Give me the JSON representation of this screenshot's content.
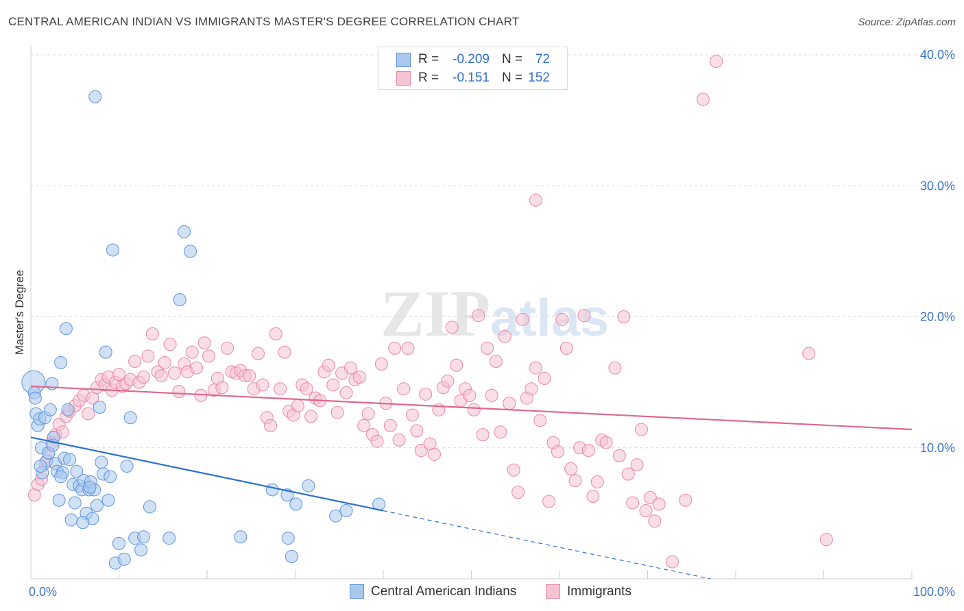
{
  "title": "CENTRAL AMERICAN INDIAN VS IMMIGRANTS MASTER'S DEGREE CORRELATION CHART",
  "source": "Source: ZipAtlas.com",
  "watermark": {
    "zip": "ZIP",
    "atlas": "atlas"
  },
  "colors": {
    "blue": "#5b93dd",
    "blue_fill": "#aac8ee",
    "blue_line": "#2a6fd0",
    "pink": "#e986a6",
    "pink_fill": "#f6c3d3",
    "pink_line": "#e0668f",
    "grid": "#d9d9d9",
    "tick_text": "#3a73c8"
  },
  "legend": {
    "rows": [
      {
        "r_label": "R =",
        "r_value": "-0.209",
        "n_label": "N =",
        "n_value": "72"
      },
      {
        "r_label": "R =",
        "r_value": "-0.151",
        "n_label": "N =",
        "n_value": "152"
      }
    ],
    "bottom": [
      "Central American Indians",
      "Immigrants"
    ]
  },
  "chart_data": {
    "type": "scatter",
    "title": "CENTRAL AMERICAN INDIAN VS IMMIGRANTS MASTER'S DEGREE CORRELATION CHART",
    "xlabel": "",
    "ylabel": "Master's Degree",
    "xlim": [
      0,
      100
    ],
    "ylim": [
      0,
      40
    ],
    "x_tick_labels": [
      "0.0%",
      "100.0%"
    ],
    "y_ticks": [
      10,
      20,
      30,
      40
    ],
    "y_tick_labels": [
      "10.0%",
      "20.0%",
      "30.0%",
      "40.0%"
    ],
    "series": [
      {
        "name": "Central American Indians",
        "r": -0.209,
        "n": 72,
        "trend": {
          "x0": 0,
          "y0": 10.8,
          "x1": 40,
          "y1": 5.2,
          "dash_to_x": 100
        },
        "points": [
          [
            0.3,
            15.0
          ],
          [
            0.4,
            14.2
          ],
          [
            0.5,
            13.8
          ],
          [
            0.6,
            12.6
          ],
          [
            0.8,
            11.7
          ],
          [
            1.0,
            12.2
          ],
          [
            1.2,
            10.0
          ],
          [
            1.3,
            8.1
          ],
          [
            1.6,
            12.3
          ],
          [
            1.8,
            9.0
          ],
          [
            2.0,
            9.6
          ],
          [
            2.2,
            12.9
          ],
          [
            2.4,
            14.9
          ],
          [
            2.6,
            10.8
          ],
          [
            2.8,
            8.8
          ],
          [
            3.0,
            8.2
          ],
          [
            3.2,
            6.0
          ],
          [
            3.4,
            16.5
          ],
          [
            3.6,
            8.1
          ],
          [
            3.8,
            9.2
          ],
          [
            4.0,
            19.1
          ],
          [
            4.2,
            12.9
          ],
          [
            4.4,
            9.1
          ],
          [
            4.6,
            4.5
          ],
          [
            4.8,
            7.2
          ],
          [
            5.0,
            5.8
          ],
          [
            5.2,
            8.2
          ],
          [
            5.5,
            7.1
          ],
          [
            5.8,
            6.8
          ],
          [
            6.0,
            7.5
          ],
          [
            6.3,
            5.0
          ],
          [
            6.6,
            6.8
          ],
          [
            6.8,
            7.4
          ],
          [
            7.0,
            4.6
          ],
          [
            7.2,
            6.8
          ],
          [
            7.5,
            5.6
          ],
          [
            7.8,
            13.1
          ],
          [
            8.0,
            8.9
          ],
          [
            8.2,
            8.0
          ],
          [
            8.5,
            17.3
          ],
          [
            8.8,
            6.0
          ],
          [
            9.0,
            7.8
          ],
          [
            9.3,
            25.1
          ],
          [
            9.6,
            1.2
          ],
          [
            10.0,
            2.7
          ],
          [
            10.6,
            1.5
          ],
          [
            10.9,
            8.6
          ],
          [
            11.3,
            12.3
          ],
          [
            11.8,
            3.1
          ],
          [
            12.5,
            2.2
          ],
          [
            12.8,
            3.2
          ],
          [
            13.5,
            5.5
          ],
          [
            15.7,
            3.1
          ],
          [
            17.4,
            26.5
          ],
          [
            18.1,
            25.0
          ],
          [
            16.9,
            21.3
          ],
          [
            7.3,
            36.8
          ],
          [
            23.8,
            3.2
          ],
          [
            27.4,
            6.8
          ],
          [
            29.1,
            6.4
          ],
          [
            29.2,
            3.1
          ],
          [
            29.6,
            1.7
          ],
          [
            30.1,
            5.7
          ],
          [
            31.5,
            7.1
          ],
          [
            34.6,
            4.8
          ],
          [
            35.8,
            5.2
          ],
          [
            39.5,
            5.7
          ],
          [
            1.1,
            8.6
          ],
          [
            2.5,
            10.2
          ],
          [
            3.4,
            7.8
          ],
          [
            5.9,
            4.3
          ],
          [
            6.7,
            7.0
          ]
        ]
      },
      {
        "name": "Immigrants",
        "r": -0.151,
        "n": 152,
        "trend": {
          "x0": 0,
          "y0": 14.7,
          "x1": 100,
          "y1": 11.4
        },
        "points": [
          [
            0.4,
            6.4
          ],
          [
            0.8,
            7.2
          ],
          [
            1.2,
            7.6
          ],
          [
            1.6,
            8.8
          ],
          [
            2.0,
            9.6
          ],
          [
            2.4,
            10.4
          ],
          [
            2.8,
            11.0
          ],
          [
            3.2,
            11.8
          ],
          [
            3.6,
            11.2
          ],
          [
            4.0,
            12.4
          ],
          [
            4.4,
            12.8
          ],
          [
            5.0,
            13.2
          ],
          [
            5.5,
            13.6
          ],
          [
            6.0,
            14.0
          ],
          [
            6.5,
            12.6
          ],
          [
            7.0,
            13.8
          ],
          [
            7.5,
            14.6
          ],
          [
            8.0,
            15.2
          ],
          [
            8.4,
            14.8
          ],
          [
            8.8,
            15.4
          ],
          [
            9.2,
            14.4
          ],
          [
            9.6,
            15.0
          ],
          [
            10.0,
            15.6
          ],
          [
            10.4,
            14.7
          ],
          [
            10.8,
            14.9
          ],
          [
            11.3,
            15.2
          ],
          [
            11.8,
            16.6
          ],
          [
            12.3,
            15.0
          ],
          [
            12.8,
            15.4
          ],
          [
            13.3,
            17.0
          ],
          [
            13.8,
            18.7
          ],
          [
            14.4,
            15.8
          ],
          [
            14.8,
            15.5
          ],
          [
            15.2,
            16.5
          ],
          [
            15.8,
            17.9
          ],
          [
            16.3,
            15.7
          ],
          [
            16.8,
            14.3
          ],
          [
            17.4,
            16.4
          ],
          [
            17.8,
            15.8
          ],
          [
            18.3,
            17.3
          ],
          [
            18.8,
            16.1
          ],
          [
            19.3,
            14.0
          ],
          [
            19.7,
            18.0
          ],
          [
            20.2,
            17.0
          ],
          [
            20.8,
            14.4
          ],
          [
            21.2,
            15.3
          ],
          [
            21.7,
            14.6
          ],
          [
            22.3,
            17.6
          ],
          [
            22.8,
            15.8
          ],
          [
            23.3,
            15.7
          ],
          [
            23.8,
            15.9
          ],
          [
            24.3,
            15.5
          ],
          [
            24.8,
            15.5
          ],
          [
            25.3,
            14.5
          ],
          [
            25.8,
            17.2
          ],
          [
            26.3,
            14.8
          ],
          [
            26.8,
            12.3
          ],
          [
            27.2,
            11.7
          ],
          [
            27.8,
            18.7
          ],
          [
            28.3,
            14.5
          ],
          [
            28.8,
            17.3
          ],
          [
            29.3,
            12.8
          ],
          [
            29.8,
            12.5
          ],
          [
            30.3,
            13.2
          ],
          [
            30.8,
            14.8
          ],
          [
            31.3,
            14.5
          ],
          [
            31.8,
            12.4
          ],
          [
            32.3,
            13.8
          ],
          [
            32.8,
            13.6
          ],
          [
            33.3,
            15.8
          ],
          [
            33.8,
            16.3
          ],
          [
            34.3,
            14.8
          ],
          [
            34.8,
            12.7
          ],
          [
            35.3,
            15.7
          ],
          [
            35.8,
            14.2
          ],
          [
            36.3,
            16.1
          ],
          [
            36.8,
            15.2
          ],
          [
            37.3,
            15.4
          ],
          [
            37.8,
            11.7
          ],
          [
            38.3,
            12.6
          ],
          [
            38.8,
            11.0
          ],
          [
            39.3,
            10.5
          ],
          [
            39.8,
            16.4
          ],
          [
            40.3,
            13.4
          ],
          [
            40.8,
            11.7
          ],
          [
            41.3,
            17.6
          ],
          [
            41.8,
            10.6
          ],
          [
            42.3,
            14.5
          ],
          [
            42.8,
            17.6
          ],
          [
            43.3,
            12.5
          ],
          [
            43.8,
            11.3
          ],
          [
            44.3,
            9.8
          ],
          [
            44.8,
            14.1
          ],
          [
            45.3,
            10.3
          ],
          [
            45.8,
            9.5
          ],
          [
            46.3,
            12.9
          ],
          [
            46.8,
            14.6
          ],
          [
            47.3,
            15.1
          ],
          [
            47.8,
            19.2
          ],
          [
            48.3,
            16.3
          ],
          [
            48.8,
            13.6
          ],
          [
            49.3,
            14.5
          ],
          [
            49.8,
            14.0
          ],
          [
            50.3,
            12.9
          ],
          [
            50.8,
            20.1
          ],
          [
            51.3,
            11.0
          ],
          [
            51.8,
            17.6
          ],
          [
            52.3,
            14.0
          ],
          [
            52.8,
            16.6
          ],
          [
            53.3,
            11.2
          ],
          [
            53.8,
            18.5
          ],
          [
            54.3,
            13.4
          ],
          [
            54.8,
            8.3
          ],
          [
            55.3,
            6.6
          ],
          [
            55.8,
            19.8
          ],
          [
            56.3,
            13.8
          ],
          [
            56.8,
            14.5
          ],
          [
            57.3,
            16.1
          ],
          [
            57.8,
            12.1
          ],
          [
            58.3,
            15.3
          ],
          [
            58.8,
            5.9
          ],
          [
            59.3,
            10.4
          ],
          [
            59.8,
            9.7
          ],
          [
            60.3,
            19.8
          ],
          [
            60.8,
            17.6
          ],
          [
            61.3,
            8.4
          ],
          [
            61.8,
            7.5
          ],
          [
            62.3,
            10.0
          ],
          [
            62.8,
            20.1
          ],
          [
            63.3,
            9.8
          ],
          [
            63.8,
            6.3
          ],
          [
            64.3,
            7.4
          ],
          [
            64.8,
            10.6
          ],
          [
            65.3,
            10.4
          ],
          [
            66.3,
            16.1
          ],
          [
            66.8,
            9.4
          ],
          [
            67.3,
            20.0
          ],
          [
            67.8,
            8.0
          ],
          [
            68.3,
            5.8
          ],
          [
            68.8,
            8.7
          ],
          [
            69.3,
            11.4
          ],
          [
            69.8,
            5.2
          ],
          [
            70.3,
            6.2
          ],
          [
            70.8,
            4.4
          ],
          [
            71.3,
            5.7
          ],
          [
            72.8,
            1.3
          ],
          [
            74.3,
            6.0
          ],
          [
            57.3,
            28.9
          ],
          [
            76.3,
            36.6
          ],
          [
            77.8,
            39.5
          ],
          [
            88.3,
            17.2
          ],
          [
            90.3,
            3.0
          ]
        ]
      }
    ]
  }
}
